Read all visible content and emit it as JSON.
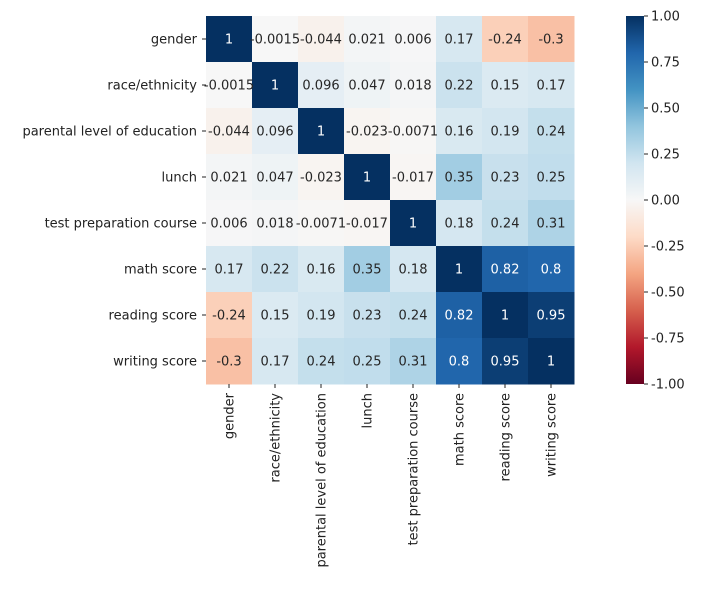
{
  "chart_data": {
    "type": "heatmap",
    "title": "",
    "xlabel": "",
    "ylabel": "",
    "labels": [
      "gender",
      "race/ethnicity",
      "parental level of education",
      "lunch",
      "test preparation course",
      "math score",
      "reading score",
      "writing score"
    ],
    "matrix": [
      [
        1,
        -0.0015,
        -0.044,
        0.021,
        0.006,
        0.17,
        -0.24,
        -0.3
      ],
      [
        -0.0015,
        1,
        0.096,
        0.047,
        0.018,
        0.22,
        0.15,
        0.17
      ],
      [
        -0.044,
        0.096,
        1,
        -0.023,
        -0.0071,
        0.16,
        0.19,
        0.24
      ],
      [
        0.021,
        0.047,
        -0.023,
        1,
        -0.017,
        0.35,
        0.23,
        0.25
      ],
      [
        0.006,
        0.018,
        -0.0071,
        -0.017,
        1,
        0.18,
        0.24,
        0.31
      ],
      [
        0.17,
        0.22,
        0.16,
        0.35,
        0.18,
        1,
        0.82,
        0.8
      ],
      [
        -0.24,
        0.15,
        0.19,
        0.23,
        0.24,
        0.82,
        1,
        0.95
      ],
      [
        -0.3,
        0.17,
        0.24,
        0.25,
        0.31,
        0.8,
        0.95,
        1
      ]
    ],
    "cell_text": [
      [
        "1",
        "-0.0015",
        "-0.044",
        "0.021",
        "0.006",
        "0.17",
        "-0.24",
        "-0.3"
      ],
      [
        "-0.0015",
        "1",
        "0.096",
        "0.047",
        "0.018",
        "0.22",
        "0.15",
        "0.17"
      ],
      [
        "-0.044",
        "0.096",
        "1",
        "-0.023",
        "-0.0071",
        "0.16",
        "0.19",
        "0.24"
      ],
      [
        "0.021",
        "0.047",
        "-0.023",
        "1",
        "-0.017",
        "0.35",
        "0.23",
        "0.25"
      ],
      [
        "0.006",
        "0.018",
        "-0.0071",
        "-0.017",
        "1",
        "0.18",
        "0.24",
        "0.31"
      ],
      [
        "0.17",
        "0.22",
        "0.16",
        "0.35",
        "0.18",
        "1",
        "0.82",
        "0.8"
      ],
      [
        "-0.24",
        "0.15",
        "0.19",
        "0.23",
        "0.24",
        "0.82",
        "1",
        "0.95"
      ],
      [
        "-0.3",
        "0.17",
        "0.24",
        "0.25",
        "0.31",
        "0.8",
        "0.95",
        "1"
      ]
    ],
    "vmin": -1,
    "vmax": 1,
    "colormap": "RdBu",
    "colorbar_ticks": [
      "1.00",
      "0.75",
      "0.50",
      "0.25",
      "0.00",
      "-0.25",
      "-0.50",
      "-0.75",
      "-1.00"
    ],
    "colorbar_tick_values": [
      1,
      0.75,
      0.5,
      0.25,
      0,
      -0.25,
      -0.5,
      -0.75,
      -1
    ],
    "colorbar": "right"
  }
}
